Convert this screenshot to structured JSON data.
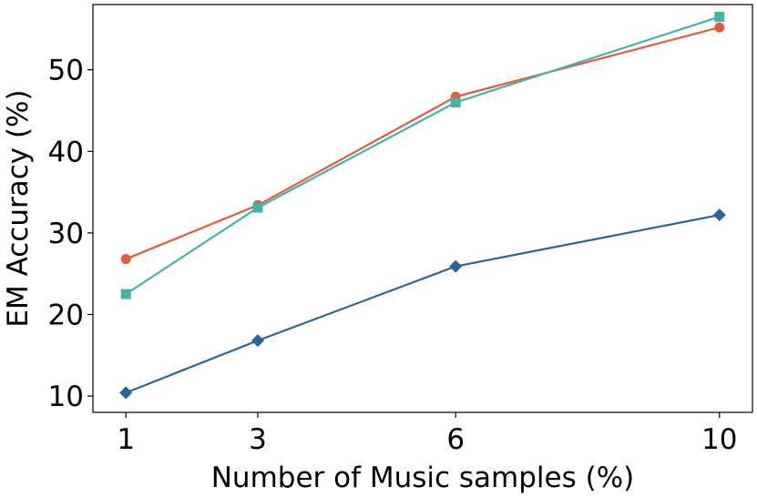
{
  "chart_data": {
    "type": "line",
    "title": "",
    "xlabel": "Number of Music samples (%)",
    "ylabel": "EM Accuracy (%)",
    "x": [
      1,
      3,
      6,
      10
    ],
    "x_tick_labels": [
      "1",
      "3",
      "6",
      "10"
    ],
    "y_ticks": [
      10,
      20,
      30,
      40,
      50
    ],
    "y_tick_labels": [
      "10",
      "20",
      "30",
      "40",
      "50"
    ],
    "xlim": [
      0.5,
      10.5
    ],
    "ylim": [
      8,
      58
    ],
    "grid": false,
    "legend": "none",
    "series": [
      {
        "color": "#e45a3c",
        "marker": "circle",
        "values": [
          26.8,
          33.4,
          46.7,
          55.2
        ]
      },
      {
        "color": "#45b2a8",
        "marker": "square",
        "values": [
          22.5,
          33.1,
          46.0,
          56.5
        ]
      },
      {
        "color": "#2a6597",
        "marker": "diamond",
        "values": [
          10.4,
          16.8,
          25.9,
          32.2
        ]
      }
    ]
  }
}
